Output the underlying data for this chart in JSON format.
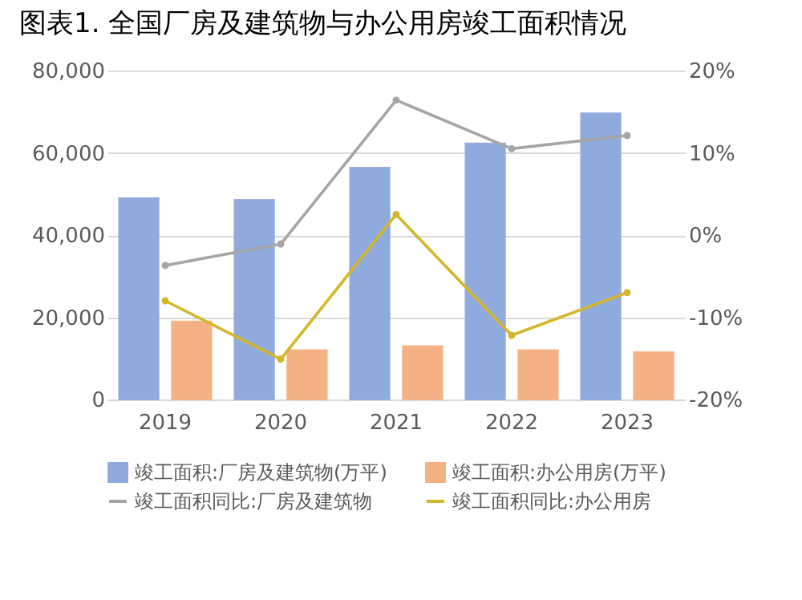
{
  "chart_data": {
    "type": "bar",
    "title": "图表1. 全国厂房及建筑物与办公用房竣工面积情况",
    "categories": [
      "2019",
      "2020",
      "2021",
      "2022",
      "2023"
    ],
    "series": [
      {
        "name": "竣工面积:厂房及建筑物(万平)",
        "type": "bar",
        "color": "#8faadc",
        "values": [
          49000,
          48600,
          56400,
          62300,
          69600
        ]
      },
      {
        "name": "竣工面积:办公用房(万平)",
        "type": "bar",
        "color": "#f4b183",
        "values": [
          19000,
          12000,
          13000,
          12000,
          11500
        ]
      },
      {
        "name": "竣工面积同比:厂房及建筑物",
        "type": "line",
        "axis": "y2",
        "color": "#a5a5a5",
        "values": [
          -3.7,
          -1.1,
          16.4,
          10.5,
          12.1
        ]
      },
      {
        "name": "竣工面积同比:办公用房",
        "type": "line",
        "axis": "y2",
        "color": "#d4b62c",
        "values": [
          -8.0,
          -15.1,
          2.5,
          -12.2,
          -7.0
        ]
      }
    ],
    "ylim": [
      0,
      80000
    ],
    "yticks": [
      0,
      {
        "value": 20000,
        "label": "20,000"
      },
      {
        "value": 40000,
        "label": "40,000"
      },
      {
        "value": 60000,
        "label": "60,000"
      },
      {
        "value": 80000,
        "label": "80,000"
      }
    ],
    "y2lim": [
      -20,
      20
    ],
    "y2ticks": [
      {
        "value": -20,
        "label": "-20%"
      },
      {
        "value": -10,
        "label": "-10%"
      },
      {
        "value": 0,
        "label": "0%"
      },
      {
        "value": 10,
        "label": "10%"
      },
      {
        "value": 20,
        "label": "20%"
      }
    ],
    "grid": "y",
    "legend": "bottom",
    "marker": "circle"
  }
}
